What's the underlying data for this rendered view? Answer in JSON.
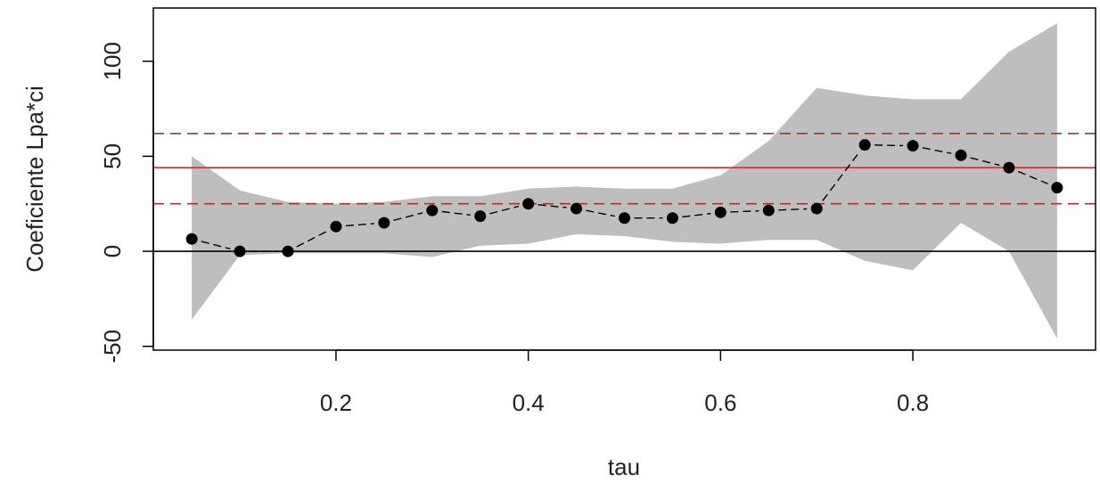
{
  "chart_data": {
    "type": "line",
    "title": "",
    "xlabel": "tau",
    "ylabel": "Coeficiente Lpa*ci",
    "xlim": [
      0.01,
      0.99
    ],
    "ylim": [
      -52,
      128
    ],
    "x_ticks": [
      0.2,
      0.4,
      0.6,
      0.8
    ],
    "x_tick_labels": [
      "0.2",
      "0.4",
      "0.6",
      "0.8"
    ],
    "y_ticks": [
      -50,
      0,
      50,
      100
    ],
    "y_tick_labels": [
      "-50",
      "0",
      "50",
      "100"
    ],
    "grid": false,
    "legend": "none",
    "series": [
      {
        "x": [
          0.05,
          0.1,
          0.15,
          0.2,
          0.25,
          0.3,
          0.35,
          0.4,
          0.45,
          0.5,
          0.55,
          0.6,
          0.65,
          0.7,
          0.75,
          0.8,
          0.85,
          0.9,
          0.95
        ],
        "values": [
          6.5,
          0,
          0,
          13,
          15,
          21.5,
          18.5,
          25,
          22.5,
          17.5,
          17.5,
          20.5,
          21.5,
          22.5,
          56,
          55.5,
          50.5,
          44,
          33.5
        ],
        "color": "#000000",
        "line_style": "dashed-segments",
        "marker": "filled-circle"
      }
    ],
    "confidence_band": {
      "x": [
        0.05,
        0.1,
        0.15,
        0.2,
        0.25,
        0.3,
        0.35,
        0.4,
        0.45,
        0.5,
        0.55,
        0.6,
        0.65,
        0.7,
        0.75,
        0.8,
        0.85,
        0.9,
        0.95
      ],
      "upper": [
        50,
        32,
        26,
        25,
        26,
        29,
        29,
        33,
        34,
        33,
        33,
        40,
        58,
        86,
        82,
        80,
        80,
        105,
        120
      ],
      "lower": [
        -36,
        -2,
        -1,
        -1,
        -1,
        -3,
        3,
        4,
        9,
        8,
        5,
        4,
        6,
        6,
        -5,
        -10,
        15,
        0,
        -46
      ],
      "color": "#bebebe"
    },
    "reference_lines": [
      {
        "y": 0,
        "color": "#000000",
        "style": "solid"
      },
      {
        "y": 44,
        "color": "#d12f2f",
        "style": "solid"
      },
      {
        "y": 62,
        "color": "#b03030",
        "style": "dashed"
      },
      {
        "y": 25,
        "color": "#b03030",
        "style": "dashed"
      }
    ]
  }
}
